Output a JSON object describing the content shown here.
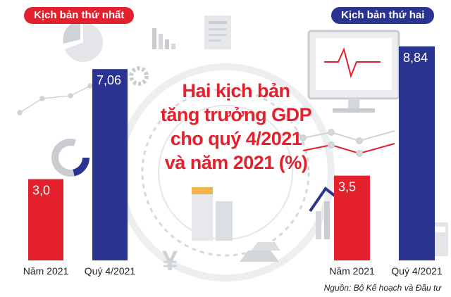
{
  "title_lines": [
    "Hai kịch bản",
    "tăng trưởng GDP",
    "cho quý 4/2021",
    "và năm 2021 (%)"
  ],
  "source": "Nguồn: Bộ Kế hoạch và Đầu tư",
  "colors": {
    "red": "#e3202b",
    "navy": "#2b3390",
    "title": "#e3202b",
    "decor": "#d8dadd"
  },
  "chart_data": [
    {
      "type": "bar",
      "title": "Kịch bản thứ nhất",
      "categories": [
        "Năm 2021",
        "Quý 4/2021"
      ],
      "values": [
        3.0,
        7.06
      ],
      "value_labels": [
        "3,0",
        "7,06"
      ],
      "bar_colors": [
        "#e3202b",
        "#2b3390"
      ],
      "ylim": [
        0,
        10
      ]
    },
    {
      "type": "bar",
      "title": "Kịch bản thứ hai",
      "categories": [
        "Năm 2021",
        "Quý 4/2021"
      ],
      "values": [
        3.5,
        8.84
      ],
      "value_labels": [
        "3,5",
        "8,84"
      ],
      "bar_colors": [
        "#e3202b",
        "#2b3390"
      ],
      "ylim": [
        0,
        10
      ]
    }
  ]
}
